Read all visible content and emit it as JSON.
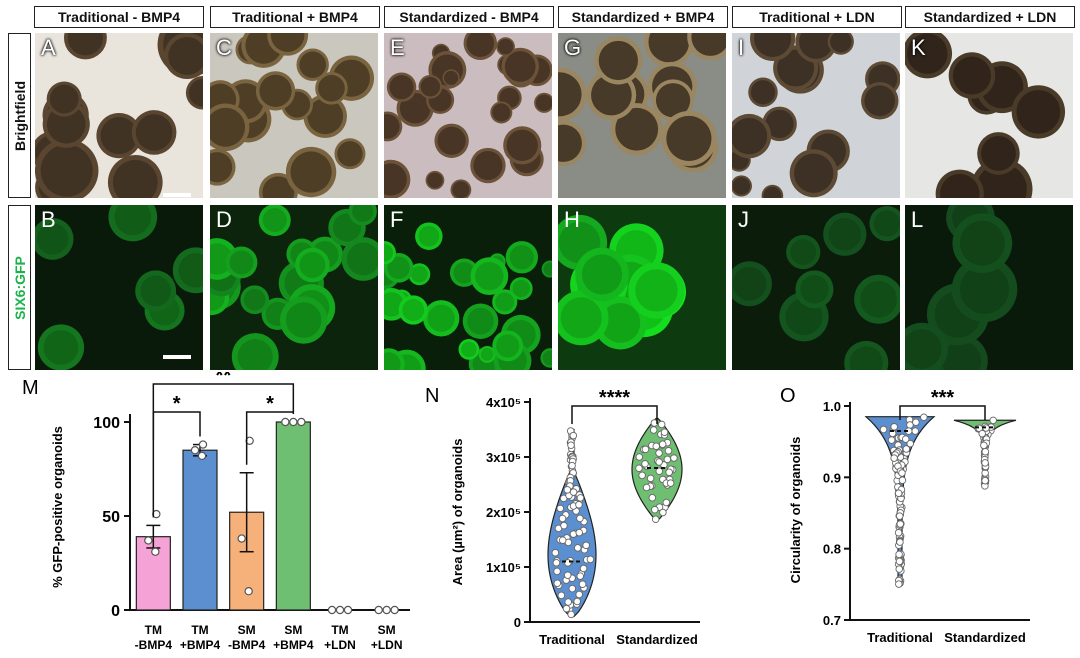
{
  "headers": [
    "Traditional - BMP4",
    "Traditional + BMP4",
    "Standardized - BMP4",
    "Standardized + BMP4",
    "Traditional + LDN",
    "Standardized + LDN"
  ],
  "row_labels": {
    "brightfield": "Brightfield",
    "gfp": "SIX6:GFP"
  },
  "panel_letters": {
    "top": [
      "A",
      "C",
      "E",
      "G",
      "I",
      "K"
    ],
    "bottom": [
      "B",
      "D",
      "F",
      "H",
      "J",
      "L"
    ]
  },
  "colors": {
    "pink": "#f5a3d6",
    "blue": "#5b8fcf",
    "orange": "#f6b07a",
    "green": "#6fbf72",
    "gfp_label": "#19b34a"
  },
  "chart_data": [
    {
      "panel": "M",
      "type": "bar",
      "ylabel": "% GFP-positive organoids",
      "ylim": [
        0,
        100
      ],
      "yticks": [
        0,
        50,
        100
      ],
      "categories": [
        "TM -BMP4",
        "TM +BMP4",
        "SM -BMP4",
        "SM +BMP4",
        "TM +LDN",
        "SM +LDN"
      ],
      "category_lines": [
        [
          "TM",
          "-BMP4"
        ],
        [
          "TM",
          "+BMP4"
        ],
        [
          "SM",
          "-BMP4"
        ],
        [
          "SM",
          "+BMP4"
        ],
        [
          "TM",
          "+LDN"
        ],
        [
          "SM",
          "+LDN"
        ]
      ],
      "values": [
        39,
        85,
        52,
        100,
        0,
        0
      ],
      "sem": [
        6,
        3,
        21,
        0,
        0,
        0
      ],
      "points": [
        [
          31,
          37,
          51
        ],
        [
          82,
          85,
          88
        ],
        [
          10,
          38,
          90
        ],
        [
          100,
          100,
          100
        ],
        [
          0,
          0,
          0
        ],
        [
          0,
          0,
          0
        ]
      ],
      "significance": [
        {
          "from": 0,
          "to": 1,
          "label": "*"
        },
        {
          "from": 2,
          "to": 3,
          "label": "*"
        },
        {
          "from": 0,
          "to": 3,
          "label": "**"
        }
      ]
    },
    {
      "panel": "N",
      "type": "violin",
      "ylabel": "Area (µm²) of organoids",
      "ylim": [
        0,
        400000
      ],
      "yticks": [
        "0",
        "1x10⁵",
        "2x10⁵",
        "3x10⁵",
        "4x10⁵"
      ],
      "categories": [
        "Traditional",
        "Standardized"
      ],
      "series": [
        {
          "name": "Traditional",
          "min": 10000,
          "max": 350000,
          "median": 110000
        },
        {
          "name": "Standardized",
          "min": 185000,
          "max": 370000,
          "median": 280000
        }
      ],
      "significance": "****"
    },
    {
      "panel": "O",
      "type": "violin",
      "ylabel": "Circularity of organoids",
      "ylim": [
        0.7,
        1.0
      ],
      "yticks": [
        "0.7",
        "0.8",
        "0.9",
        "1.0"
      ],
      "categories": [
        "Traditional",
        "Standardized"
      ],
      "series": [
        {
          "name": "Traditional",
          "min": 0.75,
          "max": 0.985,
          "median": 0.965
        },
        {
          "name": "Standardized",
          "min": 0.885,
          "max": 0.98,
          "median": 0.97
        }
      ],
      "significance": "***"
    }
  ]
}
